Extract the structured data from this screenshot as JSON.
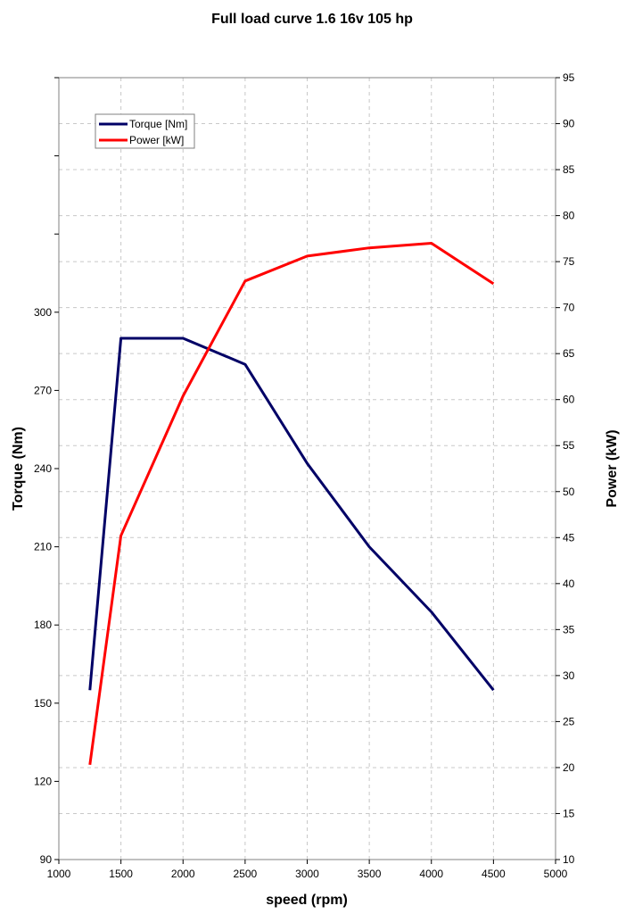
{
  "chart_data": {
    "type": "line",
    "title": "Full load curve 1.6 16v 105 hp",
    "xlabel": "speed (rpm)",
    "ylabel_left": "Torque (Nm)",
    "ylabel_right": "Power (kW)",
    "xlim": [
      1000,
      5000
    ],
    "x_ticks": [
      1000,
      1500,
      2000,
      2500,
      3000,
      3500,
      4000,
      4500,
      5000
    ],
    "ylim_left": [
      90,
      390
    ],
    "y_left_ticks": [
      90,
      120,
      150,
      180,
      210,
      240,
      270,
      300
    ],
    "ylim_right": [
      10,
      95
    ],
    "y_right_ticks": [
      10,
      15,
      20,
      25,
      30,
      35,
      40,
      45,
      50,
      55,
      60,
      65,
      70,
      75,
      80,
      85,
      90,
      95
    ],
    "grid": true,
    "legend": "top-left",
    "series": [
      {
        "name": "Torque [Nm]",
        "axis": "left",
        "color": "#000066",
        "x": [
          1250,
          1500,
          2000,
          2500,
          3000,
          3500,
          4000,
          4500
        ],
        "values": [
          155,
          290,
          290,
          280,
          242,
          210,
          185,
          155
        ]
      },
      {
        "name": "Power [kW]",
        "axis": "right",
        "color": "#ff0000",
        "x": [
          1250,
          1500,
          2000,
          2500,
          3000,
          3500,
          4000,
          4500
        ],
        "values": [
          20.3,
          45.2,
          60.4,
          72.9,
          75.6,
          76.5,
          77.0,
          72.6
        ]
      }
    ]
  }
}
